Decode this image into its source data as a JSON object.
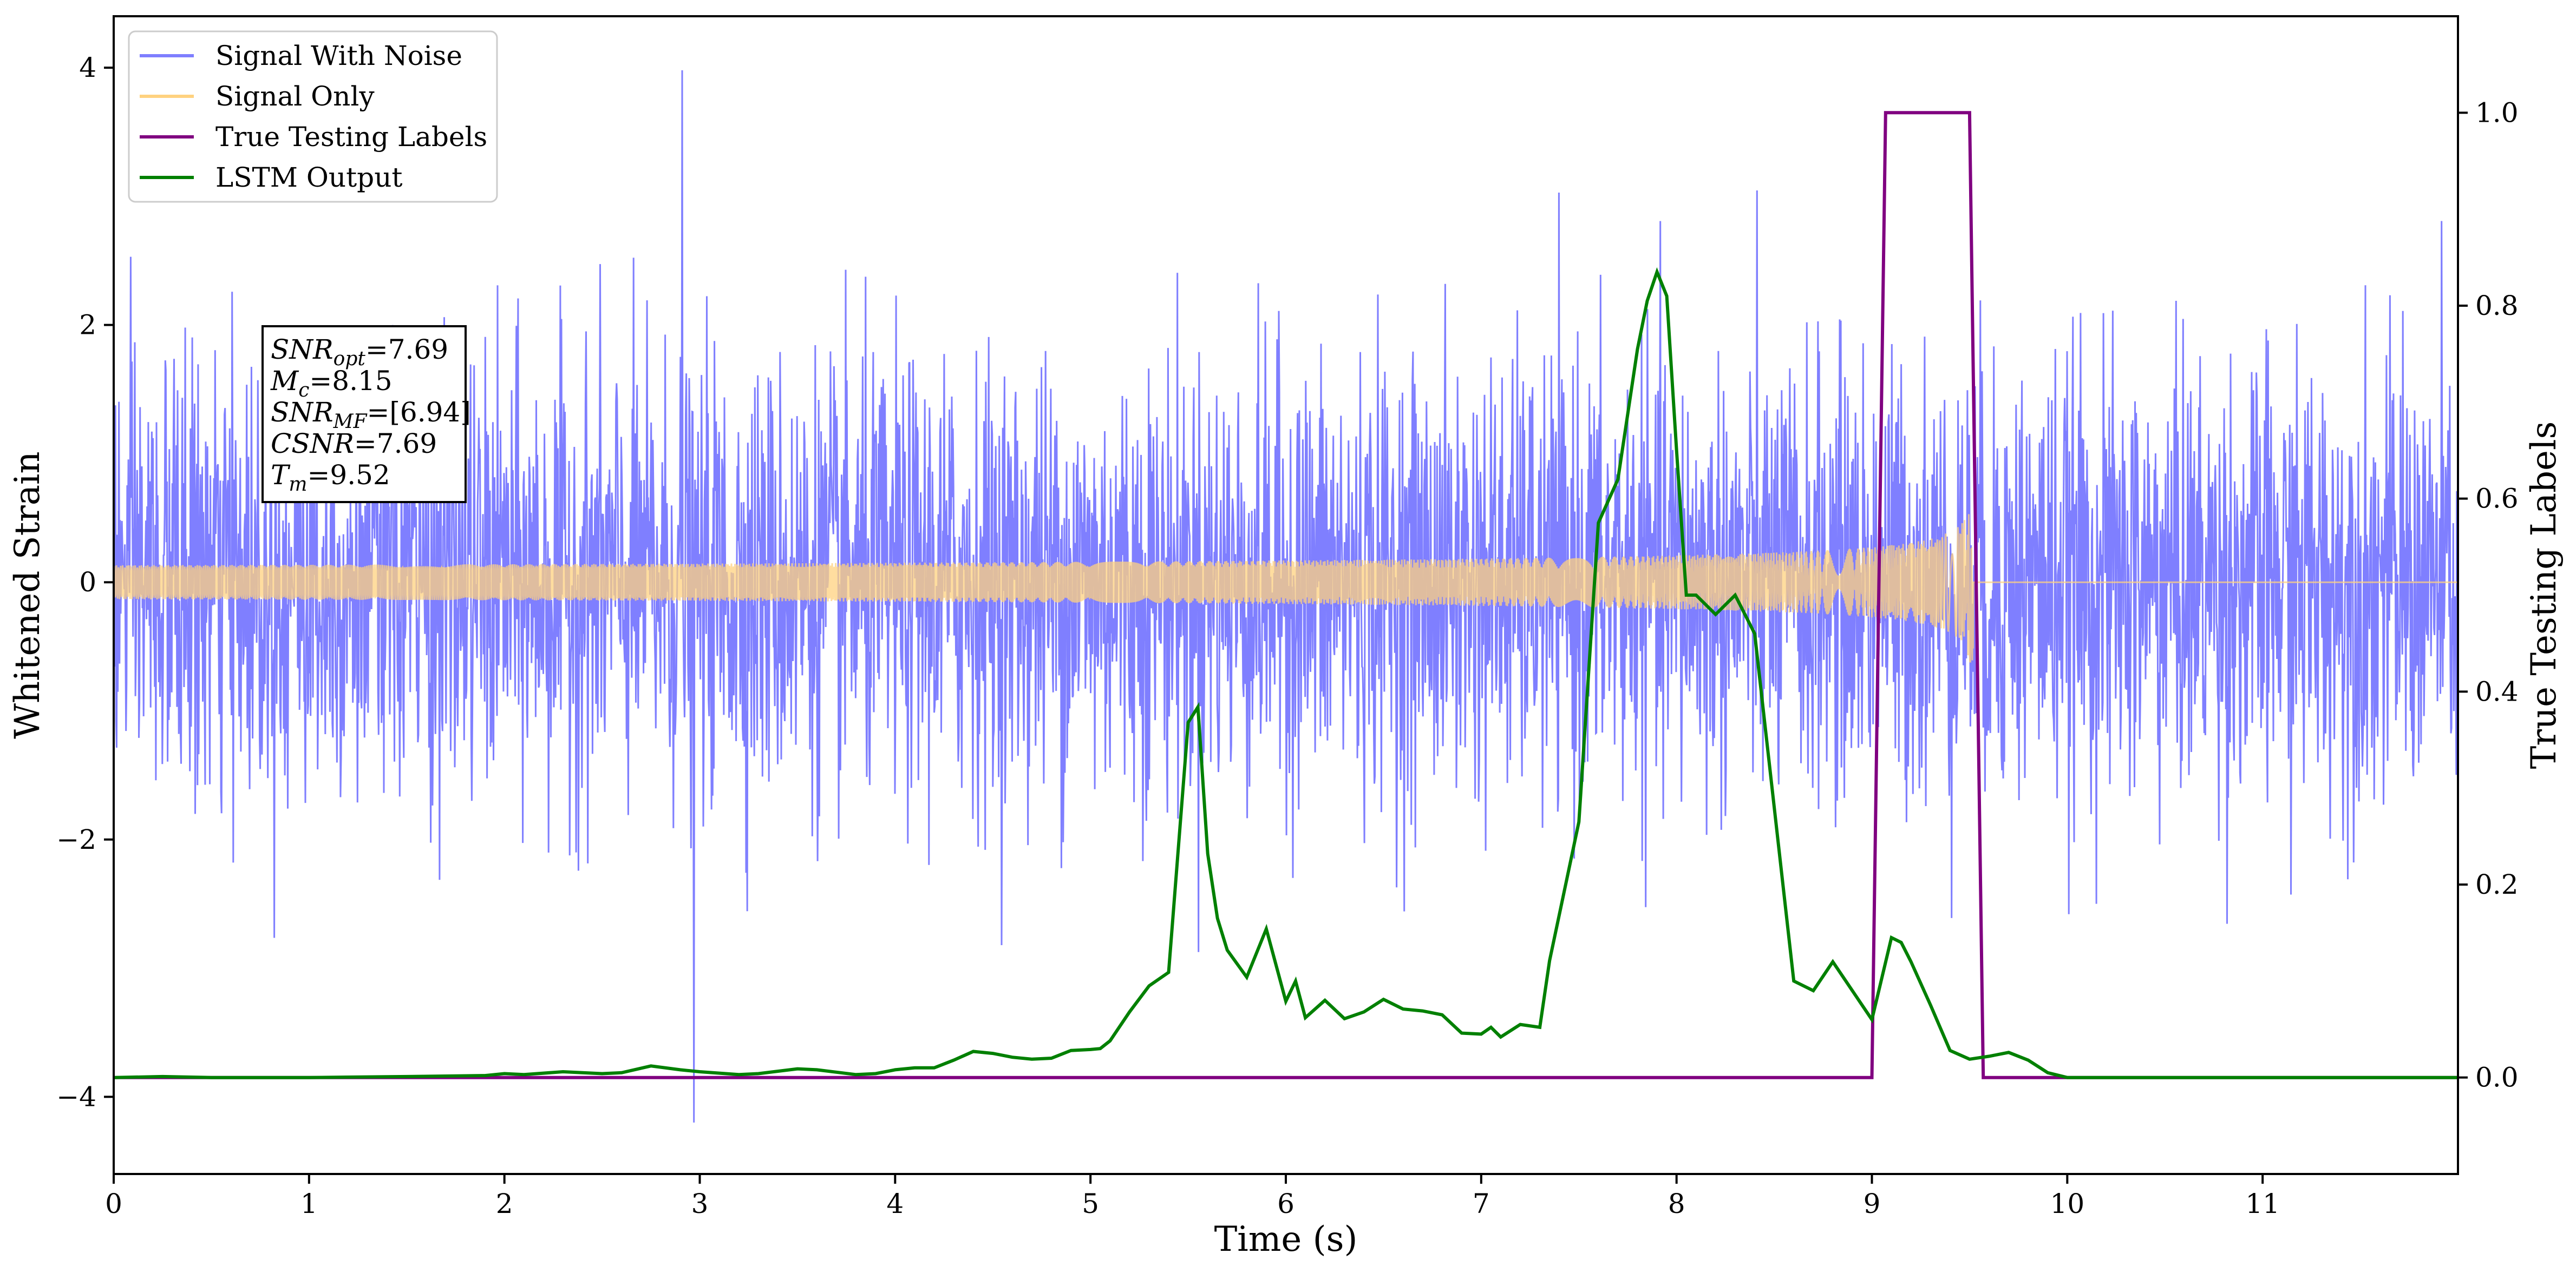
{
  "chart_data": {
    "type": "line",
    "xlabel": "Time (s)",
    "ylabel_left": "Whitened Strain",
    "ylabel_right": "True Testing Labels",
    "xlim": [
      0,
      12
    ],
    "ylim_left": [
      -4.6,
      4.4
    ],
    "ylim_right": [
      -0.1,
      1.1
    ],
    "x_ticks": [
      "0",
      "1",
      "2",
      "3",
      "4",
      "5",
      "6",
      "7",
      "8",
      "9",
      "10",
      "11"
    ],
    "y_left_ticks": [
      "−4",
      "−2",
      "0",
      "2",
      "4"
    ],
    "y_left_tick_values": [
      -4,
      -2,
      0,
      2,
      4
    ],
    "y_right_ticks": [
      "0.0",
      "0.2",
      "0.4",
      "0.6",
      "0.8",
      "1.0"
    ],
    "y_right_tick_values": [
      0.0,
      0.2,
      0.4,
      0.6,
      0.8,
      1.0
    ],
    "grid": false,
    "legend_position": "upper-left",
    "series": [
      {
        "name": "Signal With Noise",
        "color": "#7f7fff",
        "axis": "left",
        "description_values": {
          "typical_band": [
            -1.3,
            1.3
          ],
          "max": 3.98,
          "min": -4.2,
          "max_at": 2.91,
          "min_at": 2.97
        }
      },
      {
        "name": "Signal Only",
        "color": "#ffd27f",
        "axis": "left",
        "chirp": {
          "start": 0.0,
          "merger": 9.52,
          "amplitude_start": 0.02,
          "amplitude_merger": 0.65
        }
      },
      {
        "name": "True Testing Labels",
        "color": "#800080",
        "axis": "right",
        "x": [
          0,
          9.0,
          9.07,
          9.5,
          9.57,
          12
        ],
        "y": [
          0,
          0,
          1,
          1,
          0,
          0
        ]
      },
      {
        "name": "LSTM Output",
        "color": "#008000",
        "axis": "right",
        "x": [
          0,
          0.25,
          0.5,
          1.0,
          1.5,
          1.9,
          2.0,
          2.1,
          2.3,
          2.5,
          2.6,
          2.75,
          2.9,
          3.0,
          3.2,
          3.3,
          3.5,
          3.6,
          3.8,
          3.9,
          4.0,
          4.1,
          4.2,
          4.3,
          4.4,
          4.5,
          4.6,
          4.7,
          4.8,
          4.9,
          5.0,
          5.05,
          5.1,
          5.2,
          5.3,
          5.4,
          5.5,
          5.55,
          5.6,
          5.65,
          5.7,
          5.8,
          5.9,
          6.0,
          6.05,
          6.1,
          6.2,
          6.3,
          6.4,
          6.5,
          6.6,
          6.7,
          6.8,
          6.9,
          7.0,
          7.05,
          7.1,
          7.2,
          7.3,
          7.35,
          7.4,
          7.5,
          7.6,
          7.7,
          7.8,
          7.85,
          7.9,
          7.95,
          8.0,
          8.05,
          8.1,
          8.2,
          8.3,
          8.4,
          8.5,
          8.6,
          8.7,
          8.8,
          8.9,
          9.0,
          9.1,
          9.15,
          9.2,
          9.3,
          9.4,
          9.5,
          9.6,
          9.7,
          9.8,
          9.9,
          10.0,
          10.5,
          11.0,
          12.0
        ],
        "y": [
          0,
          0.001,
          0,
          0,
          0.001,
          0.002,
          0.004,
          0.003,
          0.006,
          0.004,
          0.005,
          0.012,
          0.008,
          0.006,
          0.003,
          0.004,
          0.009,
          0.008,
          0.003,
          0.004,
          0.008,
          0.01,
          0.01,
          0.018,
          0.027,
          0.025,
          0.021,
          0.019,
          0.02,
          0.028,
          0.029,
          0.03,
          0.038,
          0.068,
          0.095,
          0.109,
          0.368,
          0.384,
          0.232,
          0.165,
          0.132,
          0.104,
          0.154,
          0.079,
          0.1,
          0.062,
          0.08,
          0.061,
          0.068,
          0.081,
          0.071,
          0.069,
          0.065,
          0.046,
          0.045,
          0.052,
          0.042,
          0.055,
          0.052,
          0.121,
          0.169,
          0.265,
          0.575,
          0.62,
          0.755,
          0.805,
          0.835,
          0.81,
          0.65,
          0.5,
          0.5,
          0.48,
          0.5,
          0.46,
          0.28,
          0.1,
          0.09,
          0.12,
          0.09,
          0.06,
          0.145,
          0.14,
          0.12,
          0.075,
          0.028,
          0.019,
          0.022,
          0.026,
          0.018,
          0.005,
          0,
          0,
          0,
          0
        ]
      }
    ],
    "annotation_lines": [
      {
        "main": "SNR",
        "sub": "opt",
        "rest": "=7.69"
      },
      {
        "main": "M",
        "sub": "c",
        "rest": "=8.15"
      },
      {
        "main": "SNR",
        "sub": "MF",
        "rest": "=[6.94]"
      },
      {
        "main": "CSNR",
        "sub": "",
        "rest": "=7.69"
      },
      {
        "main": "T",
        "sub": "m",
        "rest": "=9.52"
      }
    ]
  }
}
